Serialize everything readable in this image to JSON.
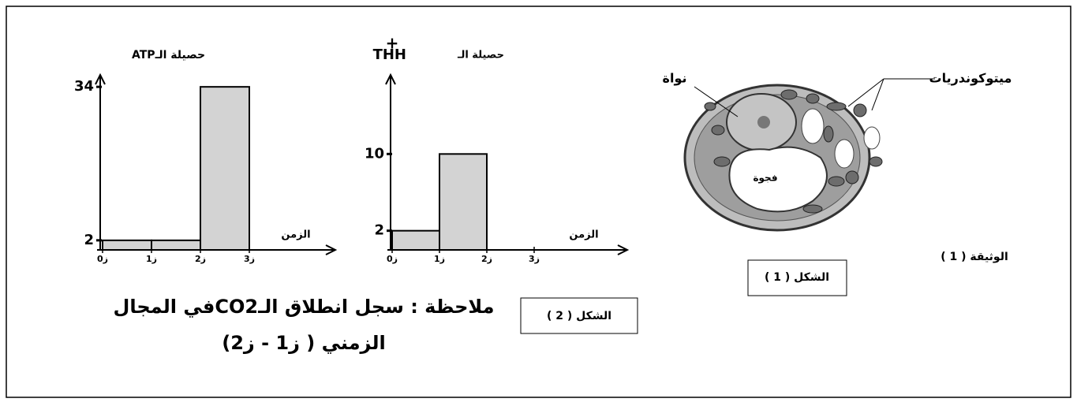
{
  "document_label": "الوثيقة ( 1 )",
  "figure1": {
    "caption": "الشكل ( 1 )",
    "nucleus": "نواة",
    "mitochondria": "ميتوكوندريات",
    "vacuole": "فجوة"
  },
  "figure2": {
    "caption": "الشكل ( 2 )",
    "note_line1": "ملاحظة : سجل انطلاق الـCO2في المجال",
    "note_line2": "الزمني ( ز1 - ز2)"
  },
  "charts": [
    {
      "type": "histogram",
      "y_label": "حصيلة الـATP",
      "x_label": "الزمن",
      "bins": [
        0,
        1,
        2,
        3
      ],
      "values": [
        2,
        2,
        34
      ],
      "color": "#d3d3d3",
      "xlim": [
        0,
        3
      ],
      "xticks": [
        {
          "value": 0,
          "label": "ز0"
        },
        {
          "value": 1,
          "label": "ز1"
        },
        {
          "value": 2,
          "label": "ز2"
        },
        {
          "value": 3,
          "label": "ز3"
        }
      ],
      "ylim": [
        0,
        36
      ],
      "yticks": [
        2,
        34
      ]
    },
    {
      "type": "histogram",
      "y_label": "حصيلة الـ",
      "y_label_unit": "THH",
      "y_label_sup": "+",
      "x_label": "الزمن",
      "bins": [
        0,
        1,
        2,
        3
      ],
      "values": [
        2,
        10,
        0
      ],
      "color": "#d3d3d3",
      "xlim": [
        0,
        3
      ],
      "xticks": [
        {
          "value": 0,
          "label": "ز0"
        },
        {
          "value": 1,
          "label": "ز1"
        },
        {
          "value": 2,
          "label": "ز2"
        },
        {
          "value": 3,
          "label": "ز3"
        }
      ],
      "ylim": [
        0,
        18
      ],
      "yticks": [
        2,
        10
      ]
    }
  ]
}
